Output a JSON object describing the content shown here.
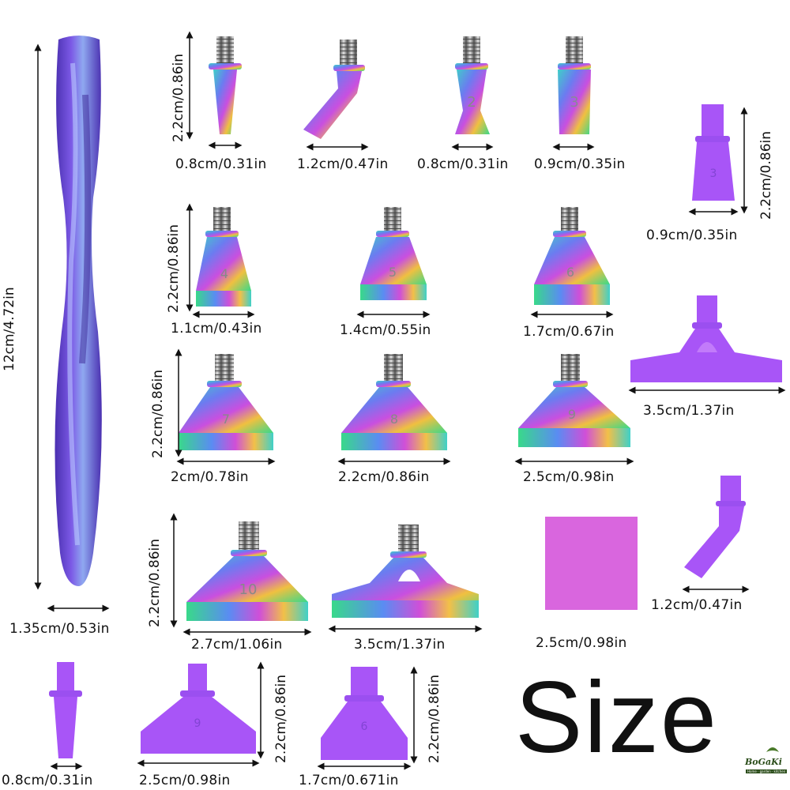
{
  "title": "Size",
  "brand": {
    "name": "BoGaKi",
    "tagline": "Home · garden · kitchen"
  },
  "colors": {
    "metal_gradient": [
      "#3fd0c8",
      "#6b7cf0",
      "#c94fe0",
      "#f0c040",
      "#39d98a"
    ],
    "purple_plastic": "#a855f7",
    "handle": "#6a3fd1",
    "swatch": "#d966de"
  },
  "handle": {
    "length_label": "12cm/4.72in",
    "width_label": "1.35cm/0.53in"
  },
  "metal_tips": [
    {
      "id": "1",
      "width_label": "0.8cm/0.31in",
      "height_label": "2.2cm/0.86in"
    },
    {
      "id": "bent",
      "width_label": "1.2cm/0.47in"
    },
    {
      "id": "2",
      "width_label": "0.8cm/0.31in",
      "engraving": "2"
    },
    {
      "id": "3",
      "width_label": "0.9cm/0.35in",
      "engraving": "3"
    },
    {
      "id": "4",
      "width_label": "1.1cm/0.43in",
      "height_label": "2.2cm/0.86in",
      "engraving": "4"
    },
    {
      "id": "5",
      "width_label": "1.4cm/0.55in",
      "engraving": "5"
    },
    {
      "id": "6",
      "width_label": "1.7cm/0.67in",
      "engraving": "6"
    },
    {
      "id": "7",
      "width_label": "2cm/0.78in",
      "height_label": "2.2cm/0.86in",
      "engraving": "7"
    },
    {
      "id": "8",
      "width_label": "2.2cm/0.86in",
      "engraving": "8"
    },
    {
      "id": "9",
      "width_label": "2.5cm/0.98in",
      "engraving": "9"
    },
    {
      "id": "10",
      "width_label": "2.7cm/1.06in",
      "height_label": "2.2cm/0.86in",
      "engraving": "10"
    },
    {
      "id": "wide",
      "width_label": "3.5cm/1.37in"
    }
  ],
  "purple_tips": [
    {
      "id": "p3",
      "width_label": "0.9cm/0.35in",
      "height_label": "2.2cm/0.86in",
      "engraving": "3"
    },
    {
      "id": "pwide",
      "width_label": "3.5cm/1.37in"
    },
    {
      "id": "pbent",
      "width_label": "1.2cm/0.47in"
    },
    {
      "id": "p1",
      "width_label": "0.8cm/0.31in"
    },
    {
      "id": "p9",
      "width_label": "2.5cm/0.98in",
      "height_label": "2.2cm/0.86in",
      "engraving": "9"
    },
    {
      "id": "p6",
      "width_label": "1.7cm/0.671in",
      "height_label": "2.2cm/0.86in",
      "engraving": "6"
    }
  ],
  "clay_swatch": {
    "width_label": "2.5cm/0.98in"
  }
}
